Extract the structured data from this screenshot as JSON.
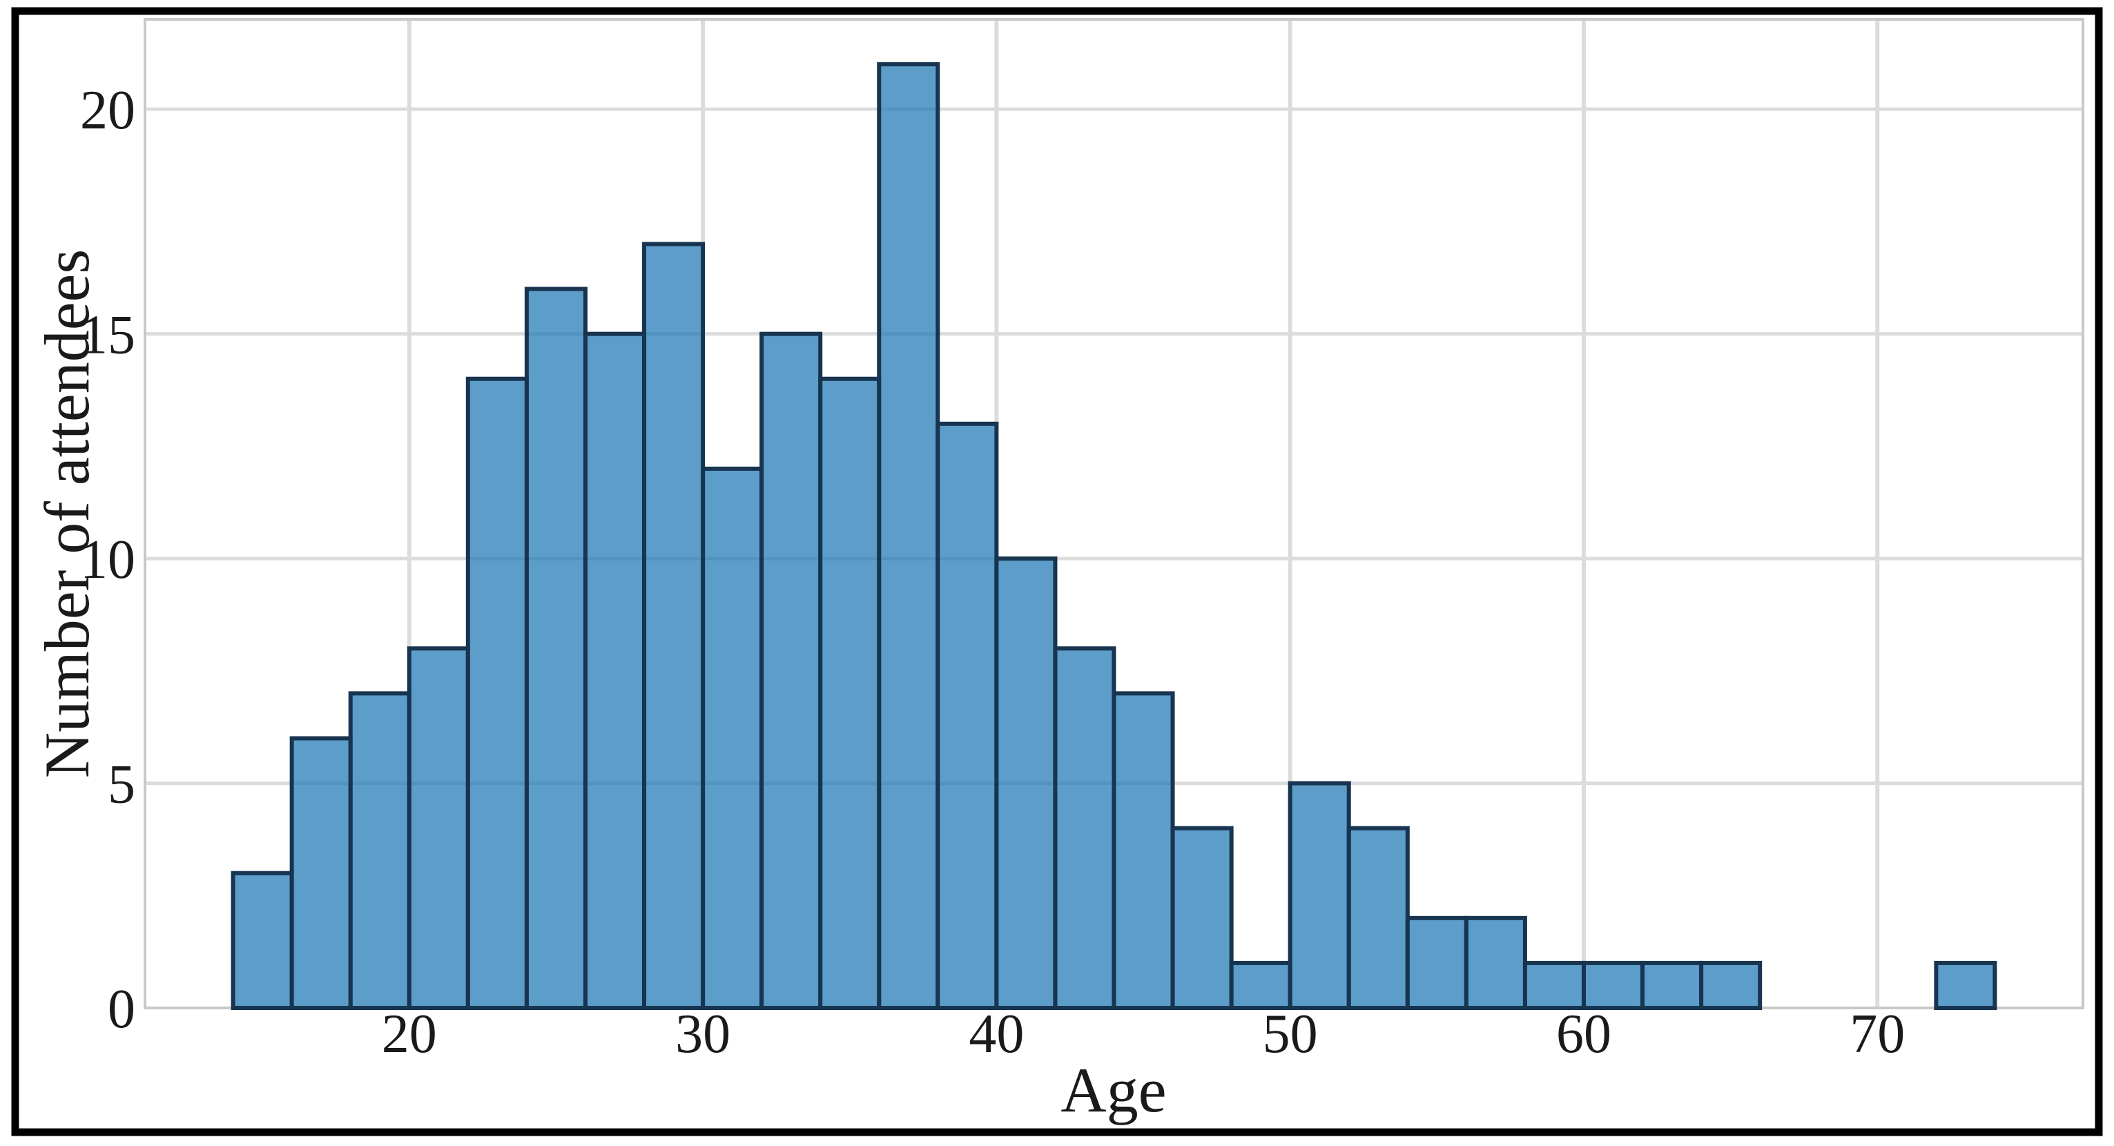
{
  "figure": {
    "background": "#ffffff",
    "border_color": "#000000"
  },
  "chart_data": {
    "type": "bar",
    "subtype": "histogram",
    "title": "",
    "xlabel": "Age",
    "ylabel": "Number of attendees",
    "bin_start": 14,
    "bin_width": 2,
    "bin_edges": [
      14,
      16,
      18,
      20,
      22,
      24,
      26,
      28,
      30,
      32,
      34,
      36,
      38,
      40,
      42,
      44,
      46,
      48,
      50,
      52,
      54,
      56,
      58,
      60,
      62,
      64,
      66,
      68,
      70,
      72,
      74
    ],
    "counts": [
      3,
      6,
      7,
      8,
      14,
      16,
      15,
      17,
      12,
      15,
      14,
      21,
      13,
      10,
      8,
      7,
      4,
      1,
      5,
      4,
      2,
      2,
      1,
      1,
      1,
      1,
      0,
      0,
      0,
      1
    ],
    "x_ticks": [
      20,
      30,
      40,
      50,
      60,
      70
    ],
    "y_ticks": [
      0,
      5,
      10,
      15,
      20
    ],
    "xlim": [
      11,
      77
    ],
    "ylim": [
      0,
      22
    ],
    "grid": true,
    "legend_position": "none",
    "colors": {
      "bar_fill": "#1f77b4",
      "bar_fill_opacity": 0.72,
      "bar_edge": "#173450",
      "grid": "#dcdcdc",
      "spine": "#c8c8c8",
      "text": "#1a1a1a",
      "frame": "#000000"
    }
  }
}
